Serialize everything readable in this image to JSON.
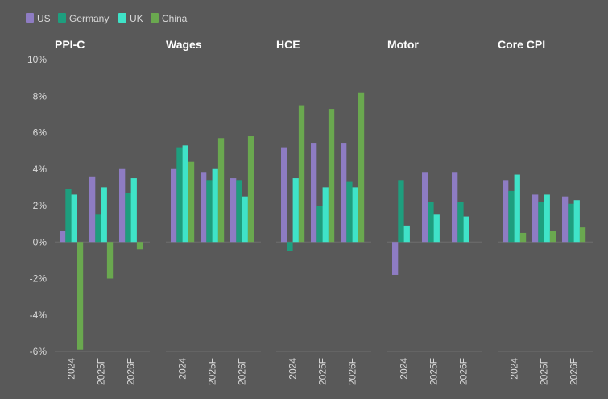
{
  "colors": {
    "background": "#595959",
    "US": "#8e7cc3",
    "Germany": "#1e9e7e",
    "UK": "#3fe3c8",
    "China": "#6aa84f",
    "axis": "#6e6e6e",
    "text": "#d9d9d9"
  },
  "chart_data": {
    "type": "bar",
    "legend_position": "top-left",
    "grid": false,
    "ylim": [
      -6,
      10
    ],
    "yticks": [
      "10%",
      "8%",
      "6%",
      "4%",
      "2%",
      "0%",
      "-2%",
      "-4%",
      "-6%"
    ],
    "ytick_values": [
      10,
      8,
      6,
      4,
      2,
      0,
      -2,
      -4,
      -6
    ],
    "series_names": [
      "US",
      "Germany",
      "UK",
      "China"
    ],
    "categories": [
      "2024",
      "2025F",
      "2026F"
    ],
    "panels": [
      {
        "title": "PPI-C",
        "series": [
          {
            "name": "US",
            "values": [
              0.6,
              3.6,
              4.0
            ]
          },
          {
            "name": "Germany",
            "values": [
              2.9,
              1.5,
              2.7
            ]
          },
          {
            "name": "UK",
            "values": [
              2.6,
              3.0,
              3.5
            ]
          },
          {
            "name": "China",
            "values": [
              -5.9,
              -2.0,
              -0.4
            ]
          }
        ]
      },
      {
        "title": "Wages",
        "series": [
          {
            "name": "US",
            "values": [
              4.0,
              3.8,
              3.5
            ]
          },
          {
            "name": "Germany",
            "values": [
              5.2,
              3.4,
              3.4
            ]
          },
          {
            "name": "UK",
            "values": [
              5.3,
              4.0,
              2.5
            ]
          },
          {
            "name": "China",
            "values": [
              4.4,
              5.7,
              5.8
            ]
          }
        ]
      },
      {
        "title": "HCE",
        "series": [
          {
            "name": "US",
            "values": [
              5.2,
              5.4,
              5.4
            ]
          },
          {
            "name": "Germany",
            "values": [
              -0.5,
              2.0,
              3.3
            ]
          },
          {
            "name": "UK",
            "values": [
              3.5,
              3.0,
              3.0
            ]
          },
          {
            "name": "China",
            "values": [
              7.5,
              7.3,
              8.2
            ]
          }
        ]
      },
      {
        "title": "Motor",
        "series": [
          {
            "name": "US",
            "values": [
              -1.8,
              3.8,
              3.8
            ]
          },
          {
            "name": "Germany",
            "values": [
              3.4,
              2.2,
              2.2
            ]
          },
          {
            "name": "UK",
            "values": [
              0.9,
              1.5,
              1.4
            ]
          },
          {
            "name": "China",
            "values": [
              0,
              0,
              0
            ]
          }
        ]
      },
      {
        "title": "Core CPI",
        "series": [
          {
            "name": "US",
            "values": [
              3.4,
              2.6,
              2.5
            ]
          },
          {
            "name": "Germany",
            "values": [
              2.8,
              2.2,
              2.1
            ]
          },
          {
            "name": "UK",
            "values": [
              3.7,
              2.6,
              2.3
            ]
          },
          {
            "name": "China",
            "values": [
              0.5,
              0.6,
              0.8
            ]
          }
        ]
      }
    ]
  }
}
